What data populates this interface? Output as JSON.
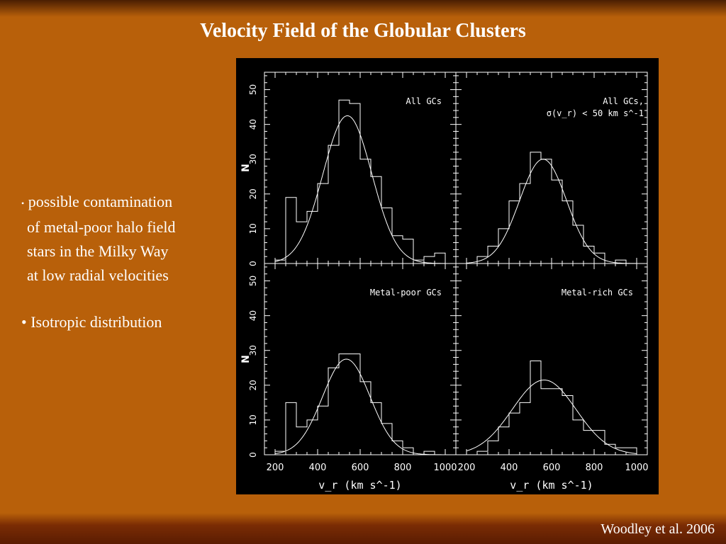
{
  "slide": {
    "title": "Velocity Field of the Globular Clusters",
    "bullets": [
      {
        "lines": [
          "possible contamination",
          "of metal-poor halo field",
          "stars in the Milky Way",
          "at low radial velocities"
        ]
      },
      {
        "lines": [
          "Isotropic distribution"
        ]
      }
    ],
    "bullet_symbol": "•",
    "citation": "Woodley et al. 2006"
  },
  "chart_data": {
    "type": "histogram",
    "layout": "2x2",
    "x_label": "v_r (km s^-1)",
    "y_label": "N",
    "x_range": [
      150,
      1050
    ],
    "x_ticks": [
      200,
      400,
      600,
      800,
      1000
    ],
    "y_range": [
      0,
      55
    ],
    "y_ticks": [
      0,
      10,
      20,
      30,
      40,
      50
    ],
    "bin_edges": [
      150,
      200,
      250,
      300,
      350,
      400,
      450,
      500,
      550,
      600,
      650,
      700,
      750,
      800,
      850,
      900,
      950,
      1000,
      1050
    ],
    "panels": [
      {
        "label": "All GCs",
        "label2": "",
        "counts": [
          0,
          1,
          19,
          12,
          15,
          23,
          34,
          47,
          46,
          30,
          25,
          16,
          8,
          7,
          1,
          2,
          3,
          0
        ],
        "fit": {
          "mu": 540,
          "sigma": 115,
          "amp": 42.5
        }
      },
      {
        "label": "All GCs,",
        "label2": "σ(v_r) < 50 km s^-1",
        "counts": [
          0,
          0,
          2,
          5,
          10,
          18,
          23,
          32,
          30,
          24,
          18,
          11,
          5,
          3,
          0,
          1,
          0,
          0
        ],
        "fit": {
          "mu": 560,
          "sigma": 110,
          "amp": 30
        }
      },
      {
        "label": "Metal-poor GCs",
        "label2": "",
        "counts": [
          0,
          1,
          15,
          8,
          10,
          14,
          25,
          29,
          29,
          21,
          15,
          9,
          4,
          2,
          0,
          1,
          0,
          0
        ],
        "fit": {
          "mu": 535,
          "sigma": 112,
          "amp": 27.5
        }
      },
      {
        "label": "Metal-rich GCs",
        "label2": "",
        "counts": [
          0,
          0,
          1,
          4,
          8,
          12,
          15,
          27,
          19,
          19,
          17,
          10,
          7,
          7,
          3,
          2,
          2,
          0
        ],
        "fit": {
          "mu": 565,
          "sigma": 150,
          "amp": 21.5
        }
      }
    ]
  }
}
